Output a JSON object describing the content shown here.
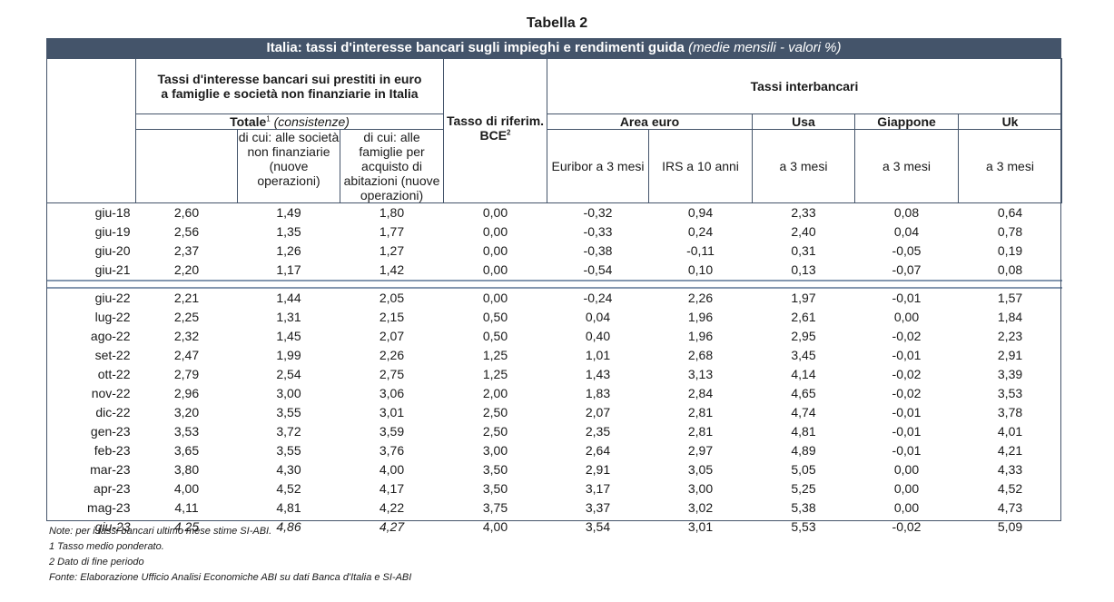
{
  "title": "Tabella 2",
  "banner": {
    "main": "Italia: tassi d'interesse bancari sugli impieghi e rendimenti guida",
    "suffix": "(medie mensili - valori %)"
  },
  "headers": {
    "group_bank": "Tassi d'interesse bancari sui prestiti in euro a famiglie e società non finanziarie in Italia",
    "totale": "Totale",
    "totale_sup": "1",
    "totale_note": "(consistenze)",
    "sub_imprese": "di cui: alle società non finanziarie (nuove operazioni)",
    "sub_famiglie": "di cui: alle famiglie per acquisto di abitazioni (nuove operazioni)",
    "bce": "Tasso di riferim. BCE",
    "bce_sup": "2",
    "interbank": "Tassi interbancari",
    "area_euro": "Area euro",
    "usa": "Usa",
    "giappone": "Giappone",
    "uk": "Uk",
    "euribor": "Euribor a 3 mesi",
    "irs": "IRS a 10 anni",
    "usa_sub": "a 3 mesi",
    "jp_sub": "a 3 mesi",
    "uk_sub": "a 3 mesi"
  },
  "rows_a": [
    [
      "giu-18",
      "2,60",
      "1,49",
      "1,80",
      "0,00",
      "-0,32",
      "0,94",
      "2,33",
      "0,08",
      "0,64"
    ],
    [
      "giu-19",
      "2,56",
      "1,35",
      "1,77",
      "0,00",
      "-0,33",
      "0,24",
      "2,40",
      "0,04",
      "0,78"
    ],
    [
      "giu-20",
      "2,37",
      "1,26",
      "1,27",
      "0,00",
      "-0,38",
      "-0,11",
      "0,31",
      "-0,05",
      "0,19"
    ],
    [
      "giu-21",
      "2,20",
      "1,17",
      "1,42",
      "0,00",
      "-0,54",
      "0,10",
      "0,13",
      "-0,07",
      "0,08"
    ]
  ],
  "rows_b": [
    [
      "giu-22",
      "2,21",
      "1,44",
      "2,05",
      "0,00",
      "-0,24",
      "2,26",
      "1,97",
      "-0,01",
      "1,57"
    ],
    [
      "lug-22",
      "2,25",
      "1,31",
      "2,15",
      "0,50",
      "0,04",
      "1,96",
      "2,61",
      "0,00",
      "1,84"
    ],
    [
      "ago-22",
      "2,32",
      "1,45",
      "2,07",
      "0,50",
      "0,40",
      "1,96",
      "2,95",
      "-0,02",
      "2,23"
    ],
    [
      "set-22",
      "2,47",
      "1,99",
      "2,26",
      "1,25",
      "1,01",
      "2,68",
      "3,45",
      "-0,01",
      "2,91"
    ],
    [
      "ott-22",
      "2,79",
      "2,54",
      "2,75",
      "1,25",
      "1,43",
      "3,13",
      "4,14",
      "-0,02",
      "3,39"
    ],
    [
      "nov-22",
      "2,96",
      "3,00",
      "3,06",
      "2,00",
      "1,83",
      "2,84",
      "4,65",
      "-0,02",
      "3,53"
    ],
    [
      "dic-22",
      "3,20",
      "3,55",
      "3,01",
      "2,50",
      "2,07",
      "2,81",
      "4,74",
      "-0,01",
      "3,78"
    ],
    [
      "gen-23",
      "3,53",
      "3,72",
      "3,59",
      "2,50",
      "2,35",
      "2,81",
      "4,81",
      "-0,01",
      "4,01"
    ],
    [
      "feb-23",
      "3,65",
      "3,55",
      "3,76",
      "3,00",
      "2,64",
      "2,97",
      "4,89",
      "-0,01",
      "4,21"
    ],
    [
      "mar-23",
      "3,80",
      "4,30",
      "4,00",
      "3,50",
      "2,91",
      "3,05",
      "5,05",
      "0,00",
      "4,33"
    ],
    [
      "apr-23",
      "4,00",
      "4,52",
      "4,17",
      "3,50",
      "3,17",
      "3,00",
      "5,25",
      "0,00",
      "4,52"
    ],
    [
      "mag-23",
      "4,11",
      "4,81",
      "4,22",
      "3,75",
      "3,37",
      "3,02",
      "5,38",
      "0,00",
      "4,73"
    ]
  ],
  "row_last": [
    "giu-23",
    "4,25",
    "4,86",
    "4,27",
    "4,00",
    "3,54",
    "3,01",
    "5,53",
    "-0,02",
    "5,09"
  ],
  "notes": [
    "Note: per i tassi bancari ultimo mese stime SI-ABI.",
    "1 Tasso medio ponderato.",
    "2 Dato di fine periodo",
    "Fonte: Elaborazione Ufficio Analisi Economiche ABI su dati Banca d'Italia e SI-ABI"
  ]
}
